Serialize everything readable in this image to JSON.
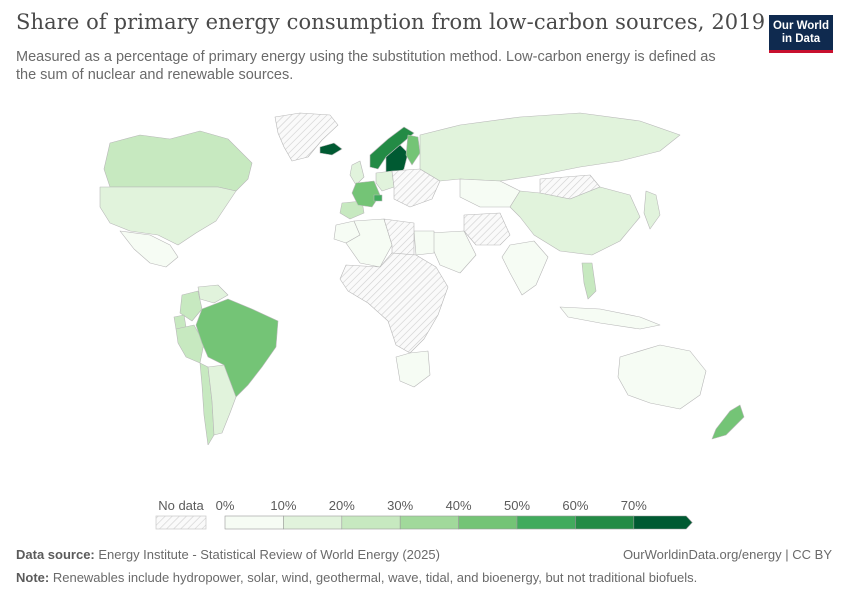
{
  "header": {
    "title": "Share of primary energy consumption from low-carbon sources, 2019",
    "subtitle": "Measured as a percentage of primary energy using the substitution method. Low-carbon energy is defined as the sum of nuclear and renewable sources."
  },
  "logo": {
    "line1": "Our World",
    "line2": "in Data",
    "bg_color": "#0f2a4f",
    "accent_color": "#c8102e"
  },
  "legend": {
    "no_data_label": "No data",
    "ticks": [
      "0%",
      "10%",
      "20%",
      "30%",
      "40%",
      "50%",
      "60%",
      "70%"
    ],
    "colors": [
      "#f6fcf4",
      "#e1f3dc",
      "#c7e9c0",
      "#a1d99b",
      "#74c476",
      "#41ab5d",
      "#238b45",
      "#005a32"
    ]
  },
  "footer": {
    "source_label": "Data source:",
    "source_text": "Energy Institute - Statistical Review of World Energy (2025)",
    "credit": "OurWorldinData.org/energy | CC BY",
    "note_label": "Note:",
    "note_text": "Renewables include hydropower, solar, wind, geothermal, wave, tidal, and bioenergy, but not traditional biofuels."
  },
  "map_data": {
    "year": 2019,
    "unit": "%",
    "regions": [
      {
        "name": "Canada",
        "value": 28
      },
      {
        "name": "United States",
        "value": 11
      },
      {
        "name": "Mexico",
        "value": 7
      },
      {
        "name": "Brazil",
        "value": 45
      },
      {
        "name": "Peru",
        "value": 25
      },
      {
        "name": "Colombia",
        "value": 25
      },
      {
        "name": "Ecuador",
        "value": 25
      },
      {
        "name": "Venezuela",
        "value": 18
      },
      {
        "name": "Argentina",
        "value": 11
      },
      {
        "name": "Chile",
        "value": 22
      },
      {
        "name": "Greenland",
        "value": null
      },
      {
        "name": "Iceland",
        "value": 80
      },
      {
        "name": "Norway",
        "value": 66
      },
      {
        "name": "Sweden",
        "value": 70
      },
      {
        "name": "Finland",
        "value": 42
      },
      {
        "name": "France",
        "value": 48
      },
      {
        "name": "Spain",
        "value": 25
      },
      {
        "name": "United Kingdom",
        "value": 18
      },
      {
        "name": "Germany",
        "value": 19
      },
      {
        "name": "Switzerland",
        "value": 50
      },
      {
        "name": "Russia",
        "value": 13
      },
      {
        "name": "China",
        "value": 15
      },
      {
        "name": "India",
        "value": 9
      },
      {
        "name": "Kazakhstan",
        "value": 2
      },
      {
        "name": "Japan",
        "value": 12
      },
      {
        "name": "Vietnam",
        "value": 24
      },
      {
        "name": "Australia",
        "value": 8
      },
      {
        "name": "New Zealand",
        "value": 40
      },
      {
        "name": "Saudi Arabia",
        "value": 0
      },
      {
        "name": "Egypt",
        "value": 5
      },
      {
        "name": "Algeria",
        "value": 1
      },
      {
        "name": "Morocco",
        "value": 8
      },
      {
        "name": "South Africa",
        "value": 6
      },
      {
        "name": "Central Africa",
        "value": null
      },
      {
        "name": "Mongolia",
        "value": null
      },
      {
        "name": "Indonesia",
        "value": 6
      }
    ]
  }
}
